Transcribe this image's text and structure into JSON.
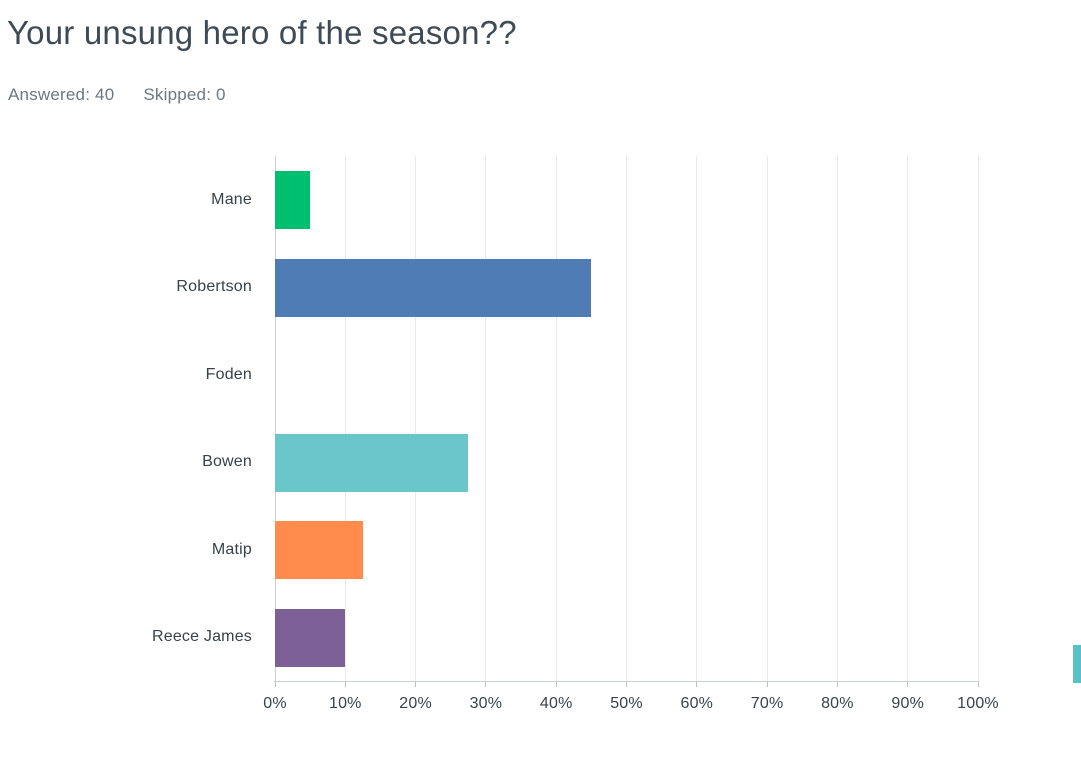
{
  "header": {
    "title": "Your unsung hero of the season??",
    "answered": "Answered: 40",
    "skipped": "Skipped: 0"
  },
  "chart_data": {
    "type": "bar",
    "orientation": "horizontal",
    "title": "Your unsung hero of the season??",
    "categories": [
      "Mane",
      "Robertson",
      "Foden",
      "Bowen",
      "Matip",
      "Reece James"
    ],
    "values": [
      5,
      45,
      0,
      27.5,
      12.5,
      10
    ],
    "value_unit": "%",
    "respondents_answered": 40,
    "respondents_skipped": 0,
    "bar_colors": [
      "#00BF6F",
      "#507CB6",
      null,
      "#6BC6C9",
      "#FF8C4D",
      "#7D6096"
    ],
    "xlim": [
      0,
      100
    ],
    "x_tick_labels": [
      "0%",
      "10%",
      "20%",
      "30%",
      "40%",
      "50%",
      "60%",
      "70%",
      "80%",
      "90%",
      "100%"
    ],
    "grid": "vertical-gridlines",
    "legend": "none"
  },
  "colors": {
    "title_text": "#3E4A54",
    "meta_text": "#6C777F",
    "label_text": "#37424A",
    "gridline": "#E8E9EA",
    "axis_line": "#C9CED1",
    "clipped_edge_element": "#57C1C5"
  }
}
